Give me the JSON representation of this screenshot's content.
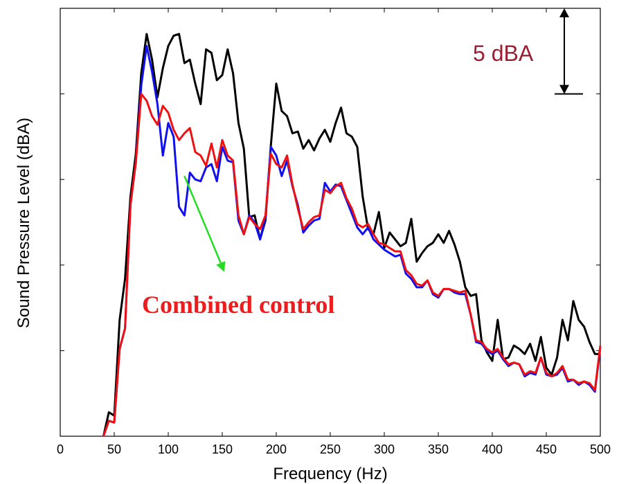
{
  "chart_data": {
    "type": "line",
    "title": "",
    "xlabel": "Frequency (Hz)",
    "ylabel": "Sound Pressure Level (dBA)",
    "xlim": [
      0,
      500
    ],
    "ylim": [
      0,
      25
    ],
    "x_ticks": [
      "0",
      "50",
      "100",
      "150",
      "200",
      "250",
      "300",
      "350",
      "400",
      "450",
      "500"
    ],
    "grid": false,
    "legend": "none",
    "scale_bar": {
      "label": "5 dBA",
      "magnitude": 5
    },
    "annotation": {
      "text": "Combined control",
      "arrow_color": "#22dd22",
      "arrow_from": [
        115,
        15.2
      ],
      "arrow_to": [
        152,
        9.6
      ]
    },
    "series": [
      {
        "color": "#000000",
        "x": [
          40,
          45,
          50,
          55,
          60,
          65,
          70,
          75,
          80,
          85,
          90,
          95,
          100,
          105,
          110,
          115,
          120,
          125,
          130,
          135,
          140,
          145,
          150,
          155,
          160,
          165,
          170,
          175,
          180,
          185,
          190,
          195,
          200,
          205,
          210,
          215,
          220,
          225,
          230,
          235,
          240,
          245,
          250,
          255,
          260,
          265,
          270,
          275,
          280,
          285,
          290,
          295,
          300,
          305,
          310,
          315,
          320,
          325,
          330,
          335,
          340,
          345,
          350,
          355,
          360,
          365,
          370,
          375,
          380,
          385,
          390,
          395,
          400,
          405,
          410,
          415,
          420,
          425,
          430,
          435,
          440,
          445,
          450,
          455,
          460,
          465,
          470,
          475,
          480,
          485,
          490,
          495,
          500
        ],
        "values": [
          0,
          1.4,
          1.2,
          6.8,
          9.2,
          14.0,
          16.5,
          21.2,
          23.5,
          22.0,
          19.8,
          21.5,
          22.8,
          23.4,
          23.5,
          21.8,
          22.0,
          20.6,
          19.4,
          22.6,
          22.4,
          20.8,
          21.1,
          22.6,
          21.2,
          18.3,
          16.8,
          12.8,
          12.9,
          11.5,
          12.6,
          17.0,
          20.6,
          19.0,
          18.7,
          17.7,
          17.8,
          16.8,
          17.3,
          16.7,
          17.4,
          17.9,
          17.2,
          18.3,
          19.2,
          17.7,
          17.5,
          16.9,
          14.0,
          12.1,
          11.8,
          13.1,
          11.0,
          11.9,
          11.5,
          11.1,
          11.3,
          12.7,
          10.2,
          10.7,
          11.1,
          11.3,
          11.8,
          11.3,
          12.0,
          11.2,
          10.2,
          8.7,
          8.2,
          8.3,
          5.6,
          4.9,
          4.4,
          6.8,
          4.5,
          4.6,
          5.3,
          5.1,
          4.8,
          5.4,
          4.4,
          5.8,
          4.0,
          3.6,
          4.6,
          6.8,
          5.6,
          7.9,
          6.8,
          6.4,
          5.5,
          4.8,
          4.8
        ]
      },
      {
        "color": "#1010ee",
        "x": [
          40,
          45,
          50,
          55,
          60,
          65,
          70,
          75,
          80,
          85,
          90,
          95,
          100,
          105,
          110,
          115,
          120,
          125,
          130,
          135,
          140,
          145,
          150,
          155,
          160,
          165,
          170,
          175,
          180,
          185,
          190,
          195,
          200,
          205,
          210,
          215,
          220,
          225,
          230,
          235,
          240,
          245,
          250,
          255,
          260,
          265,
          270,
          275,
          280,
          285,
          290,
          295,
          300,
          305,
          310,
          315,
          320,
          325,
          330,
          335,
          340,
          345,
          350,
          355,
          360,
          365,
          370,
          375,
          380,
          385,
          390,
          395,
          400,
          405,
          410,
          415,
          420,
          425,
          430,
          435,
          440,
          445,
          450,
          455,
          460,
          465,
          470,
          475,
          480,
          485,
          490,
          495,
          500
        ],
        "values": [
          0,
          0.9,
          0.8,
          5.1,
          6.3,
          13.5,
          16.0,
          20.5,
          22.8,
          21.3,
          19.4,
          16.4,
          18.3,
          17.5,
          13.4,
          12.9,
          15.4,
          15.0,
          14.9,
          15.7,
          15.9,
          14.9,
          16.9,
          16.1,
          16.0,
          12.6,
          11.8,
          12.9,
          12.5,
          11.5,
          12.8,
          16.9,
          16.4,
          15.2,
          16.1,
          14.6,
          13.5,
          11.9,
          12.3,
          12.6,
          12.7,
          14.8,
          14.3,
          14.7,
          14.6,
          13.8,
          13.0,
          12.2,
          11.8,
          12.2,
          11.5,
          11.2,
          10.9,
          10.7,
          10.5,
          10.6,
          9.5,
          9.2,
          8.7,
          8.7,
          9.1,
          8.3,
          8.1,
          8.6,
          8.6,
          8.4,
          8.3,
          8.3,
          7.1,
          5.5,
          5.4,
          5.0,
          4.8,
          5.0,
          4.5,
          4.1,
          4.3,
          4.2,
          3.5,
          3.7,
          3.6,
          4.6,
          3.6,
          3.5,
          3.6,
          4.0,
          3.2,
          3.3,
          3.0,
          3.2,
          3.0,
          2.6,
          5.2
        ]
      },
      {
        "color": "#ee1111",
        "x": [
          40,
          45,
          50,
          55,
          60,
          65,
          70,
          75,
          80,
          85,
          90,
          95,
          100,
          105,
          110,
          115,
          120,
          125,
          130,
          135,
          140,
          145,
          150,
          155,
          160,
          165,
          170,
          175,
          180,
          185,
          190,
          195,
          200,
          205,
          210,
          215,
          220,
          225,
          230,
          235,
          240,
          245,
          250,
          255,
          260,
          265,
          270,
          275,
          280,
          285,
          290,
          295,
          300,
          305,
          310,
          315,
          320,
          325,
          330,
          335,
          340,
          345,
          350,
          355,
          360,
          365,
          370,
          375,
          380,
          385,
          390,
          395,
          400,
          405,
          410,
          415,
          420,
          425,
          430,
          435,
          440,
          445,
          450,
          455,
          460,
          465,
          470,
          475,
          480,
          485,
          490,
          495,
          500
        ],
        "values": [
          0,
          0.9,
          0.8,
          5.1,
          6.3,
          13.5,
          16.0,
          20.0,
          19.6,
          18.7,
          18.2,
          19.3,
          18.9,
          17.9,
          17.3,
          17.7,
          18.0,
          16.6,
          16.4,
          15.8,
          17.1,
          15.7,
          17.3,
          16.4,
          16.1,
          12.9,
          11.8,
          12.8,
          12.4,
          12.1,
          12.9,
          16.5,
          15.9,
          15.7,
          16.4,
          14.7,
          13.3,
          12.1,
          12.5,
          12.8,
          12.9,
          14.4,
          14.2,
          14.6,
          14.8,
          13.9,
          13.3,
          12.4,
          12.2,
          12.4,
          11.8,
          11.3,
          11.2,
          11.0,
          10.8,
          10.8,
          9.7,
          9.4,
          8.9,
          8.8,
          9.1,
          8.4,
          8.2,
          8.6,
          8.6,
          8.5,
          8.4,
          8.5,
          7.1,
          5.6,
          5.5,
          5.1,
          4.9,
          5.1,
          4.6,
          4.2,
          4.3,
          4.2,
          3.6,
          3.8,
          3.7,
          4.6,
          3.7,
          3.5,
          3.7,
          4.1,
          3.3,
          3.3,
          3.1,
          3.2,
          3.1,
          2.7,
          5.3
        ]
      }
    ]
  }
}
